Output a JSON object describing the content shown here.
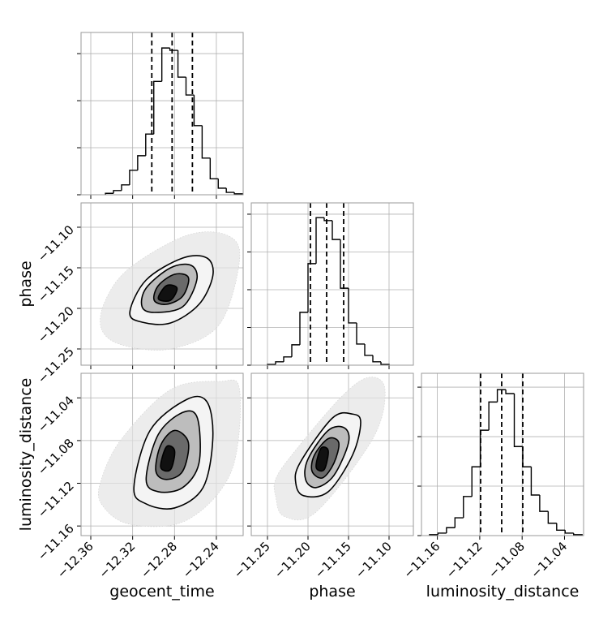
{
  "chart_data": [
    {
      "type": "histogram",
      "color": "#000000",
      "bins": [
        -12.346,
        -12.3383,
        -12.3306,
        -12.3229,
        -12.3152,
        -12.3075,
        -12.2998,
        -12.2921,
        -12.2844,
        -12.2767,
        -12.269,
        -12.2613,
        -12.2536,
        -12.2459,
        -12.2382,
        -12.2305,
        -12.2228,
        -12.2151
      ],
      "counts": [
        3,
        9,
        21,
        52,
        83,
        129,
        241,
        312,
        307,
        250,
        212,
        147,
        78,
        34,
        14,
        5,
        2
      ],
      "quantiles": [
        -12.3017,
        -12.2823,
        -12.2629
      ],
      "xlim": [
        -12.3693,
        -12.2144
      ],
      "ylim": [
        0,
        345
      ],
      "yticks": [
        0,
        100,
        200,
        300
      ],
      "grid": true
    },
    {
      "type": "contour",
      "ylabel": "phase",
      "xlim": [
        -12.3693,
        -12.2144
      ],
      "ylim": [
        -11.27,
        -11.07
      ],
      "yticks": [
        {
          "value": -11.25,
          "label": "−11.25"
        },
        {
          "value": -11.2,
          "label": "−11.20"
        },
        {
          "value": -11.15,
          "label": "−11.15"
        },
        {
          "value": -11.1,
          "label": "−11.10"
        }
      ],
      "grid": true,
      "contours": [
        {
          "fill": "#e4e4e4",
          "x": [
            -12.3499,
            -12.3304,
            -12.2838,
            -12.2372,
            -12.2178,
            -12.2294,
            -12.2683,
            -12.3227,
            -12.346
          ],
          "y": [
            -11.225,
            -11.245,
            -11.25,
            -11.22,
            -11.14,
            -11.11,
            -11.11,
            -11.15,
            -11.19
          ]
        },
        {
          "fill": "#f4f4f4",
          "x": [
            -12.3227,
            -12.311,
            -12.2838,
            -12.2566,
            -12.2434,
            -12.2489,
            -12.2722,
            -12.3071
          ],
          "y": [
            -11.205,
            -11.217,
            -11.218,
            -11.195,
            -11.16,
            -11.138,
            -11.138,
            -11.165
          ]
        },
        {
          "fill": "#bdbdbd",
          "x": [
            -12.311,
            -12.2994,
            -12.2722,
            -12.2587,
            -12.2641,
            -12.2838,
            -12.3071
          ],
          "y": [
            -11.198,
            -11.205,
            -11.198,
            -11.165,
            -11.147,
            -11.15,
            -11.175
          ]
        },
        {
          "fill": "#6a6a6a",
          "x": [
            -12.2994,
            -12.2877,
            -12.2722,
            -12.2667,
            -12.2799,
            -12.2955
          ],
          "y": [
            -11.19,
            -11.195,
            -11.185,
            -11.162,
            -11.158,
            -11.172
          ]
        },
        {
          "fill": "#111111",
          "x": [
            -12.2955,
            -12.2838,
            -12.2776,
            -12.2877
          ],
          "y": [
            -11.188,
            -11.19,
            -11.175,
            -11.172
          ]
        }
      ]
    },
    {
      "type": "histogram",
      "color": "#000000",
      "bins": [
        -11.25,
        -11.24,
        -11.23,
        -11.22,
        -11.21,
        -11.2,
        -11.19,
        -11.18,
        -11.17,
        -11.16,
        -11.15,
        -11.14,
        -11.13,
        -11.12,
        -11.11,
        -11.1
      ],
      "counts": [
        2,
        9,
        22,
        54,
        140,
        269,
        391,
        383,
        333,
        204,
        112,
        56,
        26,
        9,
        2
      ],
      "quantiles": [
        -11.197,
        -11.177,
        -11.156
      ],
      "xlim": [
        -11.27,
        -11.07
      ],
      "ylim": [
        0,
        430
      ],
      "yticks": [
        0,
        100,
        200,
        300,
        400
      ],
      "grid": true
    },
    {
      "type": "contour",
      "xlabel": "geocent_time",
      "ylabel": "luminosity_distance",
      "xlim": [
        -12.3693,
        -12.2144
      ],
      "ylim": [
        -11.169,
        -11.017
      ],
      "xticks": [
        {
          "value": -12.36,
          "label": "−12.36"
        },
        {
          "value": -12.32,
          "label": "−12.32"
        },
        {
          "value": -12.28,
          "label": "−12.28"
        },
        {
          "value": -12.24,
          "label": "−12.24"
        }
      ],
      "yticks": [
        {
          "value": -11.16,
          "label": "−11.16"
        },
        {
          "value": -11.12,
          "label": "−11.12"
        },
        {
          "value": -11.08,
          "label": "−11.08"
        },
        {
          "value": -11.04,
          "label": "−11.04"
        }
      ],
      "grid": true,
      "contours": [
        {
          "fill": "#e4e4e4",
          "x": [
            -12.3499,
            -12.3227,
            -12.2683,
            -12.2256,
            -12.2178,
            -12.2372,
            -12.2838,
            -12.3304,
            -12.3499
          ],
          "y": [
            -11.1393,
            -11.1584,
            -11.1546,
            -11.1087,
            -11.0323,
            -11.0246,
            -11.0323,
            -11.0782,
            -11.1164
          ]
        },
        {
          "fill": "#f4f4f4",
          "x": [
            -12.3188,
            -12.3071,
            -12.2799,
            -12.2527,
            -12.2434,
            -12.2489,
            -12.2683,
            -12.3033
          ],
          "y": [
            -11.124,
            -11.1393,
            -11.1431,
            -11.124,
            -11.0782,
            -11.0438,
            -11.0415,
            -11.0705
          ]
        },
        {
          "fill": "#bdbdbd",
          "x": [
            -12.3071,
            -12.2955,
            -12.2722,
            -12.2566,
            -12.2581,
            -12.2722,
            -12.2955
          ],
          "y": [
            -11.1164,
            -11.1279,
            -11.124,
            -11.1011,
            -11.059,
            -11.0537,
            -11.0743
          ]
        },
        {
          "fill": "#6a6a6a",
          "x": [
            -12.2978,
            -12.2877,
            -12.2722,
            -12.2667,
            -12.2799,
            -12.2932
          ],
          "y": [
            -11.1087,
            -11.1164,
            -11.1087,
            -11.082,
            -11.0705,
            -11.0843
          ]
        },
        {
          "fill": "#111111",
          "x": [
            -12.2932,
            -12.2838,
            -12.2799,
            -12.2877
          ],
          "y": [
            -11.1049,
            -11.1072,
            -11.0896,
            -11.0858
          ]
        }
      ]
    },
    {
      "type": "contour",
      "xlabel": "phase",
      "xlim": [
        -11.27,
        -11.07
      ],
      "ylim": [
        -11.169,
        -11.017
      ],
      "xticks": [
        {
          "value": -11.25,
          "label": "−11.25"
        },
        {
          "value": -11.2,
          "label": "−11.20"
        },
        {
          "value": -11.15,
          "label": "−11.15"
        },
        {
          "value": -11.1,
          "label": "−11.10"
        }
      ],
      "grid": true,
      "contours": [
        {
          "fill": "#e4e4e4",
          "x": [
            -11.24,
            -11.23,
            -11.19,
            -11.12,
            -11.105,
            -11.125,
            -11.16,
            -11.22,
            -11.24
          ],
          "y": [
            -11.1317,
            -11.1508,
            -11.147,
            -11.0782,
            -11.0323,
            -11.0208,
            -11.0399,
            -11.0935,
            -11.1164
          ]
        },
        {
          "fill": "#f4f4f4",
          "x": [
            -11.215,
            -11.205,
            -11.175,
            -11.145,
            -11.135,
            -11.145,
            -11.17,
            -11.21
          ],
          "y": [
            -11.1202,
            -11.1317,
            -11.1279,
            -11.0935,
            -11.0629,
            -11.0552,
            -11.059,
            -11.1011
          ]
        },
        {
          "fill": "#bdbdbd",
          "x": [
            -11.203,
            -11.19,
            -11.168,
            -11.15,
            -11.155,
            -11.175,
            -11.2
          ],
          "y": [
            -11.1164,
            -11.124,
            -11.1126,
            -11.082,
            -11.0682,
            -11.0705,
            -11.0973
          ]
        },
        {
          "fill": "#6a6a6a",
          "x": [
            -11.195,
            -11.182,
            -11.168,
            -11.162,
            -11.175,
            -11.192
          ],
          "y": [
            -11.1087,
            -11.1149,
            -11.1011,
            -11.082,
            -11.0782,
            -11.0935
          ]
        },
        {
          "fill": "#111111",
          "x": [
            -11.19,
            -11.18,
            -11.175,
            -11.184
          ],
          "y": [
            -11.1049,
            -11.1072,
            -11.0896,
            -11.0873
          ]
        }
      ]
    },
    {
      "type": "histogram",
      "color": "#000000",
      "xlabel": "luminosity_distance",
      "bins": [
        -11.1674,
        -11.1594,
        -11.1514,
        -11.1434,
        -11.1354,
        -11.1274,
        -11.1194,
        -11.1114,
        -11.1034,
        -11.0954,
        -11.0874,
        -11.0794,
        -11.0714,
        -11.0634,
        -11.0554,
        -11.0474,
        -11.0394,
        -11.0314,
        -11.0234
      ],
      "counts": [
        2,
        5,
        16,
        36,
        79,
        139,
        213,
        270,
        295,
        287,
        180,
        139,
        82,
        49,
        25,
        11,
        5,
        2
      ],
      "quantiles": [
        -11.1192,
        -11.0993,
        -11.0794
      ],
      "xlim": [
        -11.175,
        -11.022
      ],
      "ylim": [
        0,
        328
      ],
      "yticks": [
        0,
        100,
        200,
        300
      ],
      "xticks": [
        {
          "value": -11.16,
          "label": "−11.16"
        },
        {
          "value": -11.12,
          "label": "−11.12"
        },
        {
          "value": -11.08,
          "label": "−11.08"
        },
        {
          "value": -11.04,
          "label": "−11.04"
        }
      ],
      "grid": true
    }
  ]
}
